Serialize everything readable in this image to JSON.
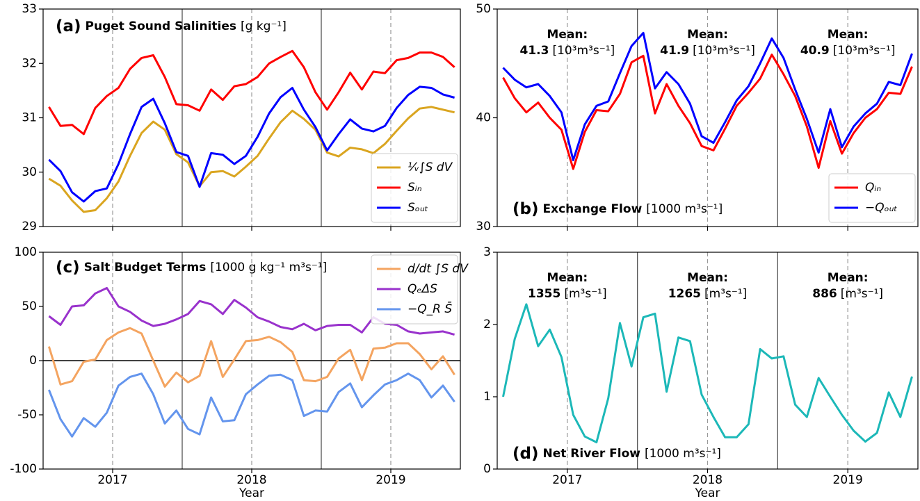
{
  "chart_data": [
    {
      "type": "line",
      "panel_label": "(a)",
      "title": "Puget Sound Salinities",
      "units": "[g kg⁻¹]",
      "x": [
        2016.542,
        2016.625,
        2016.708,
        2016.792,
        2016.875,
        2016.958,
        2017.042,
        2017.125,
        2017.208,
        2017.292,
        2017.375,
        2017.458,
        2017.542,
        2017.625,
        2017.708,
        2017.792,
        2017.875,
        2017.958,
        2018.042,
        2018.125,
        2018.208,
        2018.292,
        2018.375,
        2018.458,
        2018.542,
        2018.625,
        2018.708,
        2018.792,
        2018.875,
        2018.958,
        2019.042,
        2019.125,
        2019.208,
        2019.292,
        2019.375,
        2019.458
      ],
      "xlim": [
        2016.5,
        2019.5
      ],
      "xticks": [
        2017,
        2018,
        2019
      ],
      "show_xtick_labels": false,
      "grid_x": true,
      "vlines": [
        2017.5,
        2018.5
      ],
      "ylim": [
        29,
        33
      ],
      "yticks": [
        29,
        30,
        31,
        32,
        33
      ],
      "legend": "lower right",
      "series": [
        {
          "name": "¹⁄ᵥ∫S dV",
          "color": "#daa520",
          "values": [
            29.88,
            29.75,
            29.48,
            29.27,
            29.3,
            29.52,
            29.83,
            30.3,
            30.72,
            30.93,
            30.78,
            30.33,
            30.18,
            29.74,
            30.0,
            30.02,
            29.92,
            30.1,
            30.3,
            30.62,
            30.92,
            31.13,
            30.98,
            30.78,
            30.36,
            30.29,
            30.45,
            30.42,
            30.35,
            30.52,
            30.76,
            30.99,
            31.17,
            31.2,
            31.15,
            31.1
          ]
        },
        {
          "name": "Sᵢₙ",
          "color": "#ff0000",
          "values": [
            31.2,
            30.85,
            30.87,
            30.7,
            31.18,
            31.4,
            31.55,
            31.9,
            32.1,
            32.15,
            31.75,
            31.25,
            31.23,
            31.13,
            31.52,
            31.33,
            31.58,
            31.62,
            31.75,
            32.0,
            32.12,
            32.23,
            31.93,
            31.47,
            31.15,
            31.47,
            31.83,
            31.52,
            31.85,
            31.82,
            32.06,
            32.1,
            32.2,
            32.2,
            32.12,
            31.93
          ]
        },
        {
          "name": "Sₒᵤₜ",
          "color": "#0000ff",
          "values": [
            30.23,
            30.02,
            29.63,
            29.46,
            29.65,
            29.7,
            30.15,
            30.7,
            31.2,
            31.35,
            30.9,
            30.37,
            30.3,
            29.73,
            30.35,
            30.32,
            30.15,
            30.3,
            30.65,
            31.08,
            31.38,
            31.55,
            31.15,
            30.83,
            30.4,
            30.7,
            30.97,
            30.8,
            30.75,
            30.85,
            31.18,
            31.42,
            31.57,
            31.55,
            31.43,
            31.37
          ]
        }
      ]
    },
    {
      "type": "line",
      "panel_label": "(b)",
      "title": "Exchange Flow",
      "units": "[1000 m³s⁻¹]",
      "x": [
        2016.542,
        2016.625,
        2016.708,
        2016.792,
        2016.875,
        2016.958,
        2017.042,
        2017.125,
        2017.208,
        2017.292,
        2017.375,
        2017.458,
        2017.542,
        2017.625,
        2017.708,
        2017.792,
        2017.875,
        2017.958,
        2018.042,
        2018.125,
        2018.208,
        2018.292,
        2018.375,
        2018.458,
        2018.542,
        2018.625,
        2018.708,
        2018.792,
        2018.875,
        2018.958,
        2019.042,
        2019.125,
        2019.208,
        2019.292,
        2019.375,
        2019.458
      ],
      "xlim": [
        2016.5,
        2019.5
      ],
      "xticks": [
        2017,
        2018,
        2019
      ],
      "show_xtick_labels": false,
      "grid_x": true,
      "vlines": [
        2017.5,
        2018.5
      ],
      "ylim": [
        30,
        50
      ],
      "yticks": [
        30,
        40,
        50
      ],
      "legend": "lower right",
      "annotation_color": "#800080",
      "annotations": [
        {
          "label": "Mean:",
          "value": 41.3,
          "unit": "[10³m³s⁻¹]"
        },
        {
          "label": "Mean:",
          "value": 41.9,
          "unit": "[10³m³s⁻¹]"
        },
        {
          "label": "Mean:",
          "value": 40.9,
          "unit": "[10³m³s⁻¹]"
        }
      ],
      "series": [
        {
          "name": "Qᵢₙ",
          "color": "#ff0000",
          "values": [
            43.7,
            41.8,
            40.5,
            41.4,
            40.0,
            38.9,
            35.3,
            38.7,
            40.7,
            40.6,
            42.2,
            45.1,
            45.7,
            40.4,
            43.1,
            41.1,
            39.5,
            37.4,
            37.0,
            39.0,
            41.1,
            42.3,
            43.6,
            45.8,
            44.0,
            42.0,
            39.2,
            35.4,
            39.7,
            36.7,
            38.6,
            40.0,
            40.8,
            42.3,
            42.2,
            44.7
          ]
        },
        {
          "name": "−Qₒᵤₜ",
          "color": "#0000ff",
          "values": [
            44.6,
            43.5,
            42.8,
            43.1,
            42.0,
            40.5,
            36.1,
            39.4,
            41.1,
            41.5,
            44.1,
            46.6,
            47.8,
            42.7,
            44.2,
            43.1,
            41.3,
            38.3,
            37.7,
            39.6,
            41.6,
            42.9,
            45.0,
            47.3,
            45.5,
            42.6,
            39.9,
            36.8,
            40.8,
            37.3,
            39.2,
            40.4,
            41.3,
            43.3,
            43.0,
            45.9
          ]
        }
      ]
    },
    {
      "type": "line",
      "panel_label": "(c)",
      "title": "Salt Budget Terms",
      "units": "[1000 g kg⁻¹ m³s⁻¹]",
      "xlabel": "Year",
      "x": [
        2016.542,
        2016.625,
        2016.708,
        2016.792,
        2016.875,
        2016.958,
        2017.042,
        2017.125,
        2017.208,
        2017.292,
        2017.375,
        2017.458,
        2017.542,
        2017.625,
        2017.708,
        2017.792,
        2017.875,
        2017.958,
        2018.042,
        2018.125,
        2018.208,
        2018.292,
        2018.375,
        2018.458,
        2018.542,
        2018.625,
        2018.708,
        2018.792,
        2018.875,
        2018.958,
        2019.042,
        2019.125,
        2019.208,
        2019.292,
        2019.375,
        2019.458
      ],
      "xlim": [
        2016.5,
        2019.5
      ],
      "xticks": [
        2017,
        2018,
        2019
      ],
      "show_xtick_labels": true,
      "grid_x": true,
      "vlines": [
        2017.5,
        2018.5
      ],
      "hlines": [
        0
      ],
      "ylim": [
        -100,
        100
      ],
      "yticks": [
        -100,
        -50,
        0,
        50,
        100
      ],
      "legend": "upper right",
      "series": [
        {
          "name": "d/dt ∫S dV",
          "color": "#f4a460",
          "values": [
            13,
            -22,
            -19,
            -1,
            1,
            19,
            26,
            30,
            25,
            0,
            -24,
            -11,
            -20,
            -14,
            18,
            -15,
            1,
            18,
            19,
            22,
            17,
            8,
            -18,
            -19,
            -15,
            2,
            10,
            -18,
            11,
            12,
            16,
            16,
            6,
            -8,
            4,
            -13
          ]
        },
        {
          "name": "QₑΔS",
          "color": "#9932cc",
          "values": [
            41,
            33,
            50,
            51,
            62,
            67,
            50,
            45,
            37,
            32,
            34,
            38,
            43,
            55,
            52,
            43,
            56,
            49,
            40,
            36,
            31,
            29,
            34,
            28,
            32,
            33,
            33,
            26,
            40,
            34,
            33,
            27,
            25,
            26,
            27,
            24
          ]
        },
        {
          "name": "−Q_R S̄",
          "color": "#6495ed",
          "values": [
            -27,
            -54,
            -70,
            -53,
            -61,
            -48,
            -23,
            -15,
            -12,
            -31,
            -58,
            -46,
            -63,
            -68,
            -34,
            -56,
            -55,
            -31,
            -22,
            -14,
            -13,
            -18,
            -51,
            -46,
            -47,
            -29,
            -21,
            -43,
            -32,
            -22,
            -18,
            -12,
            -18,
            -34,
            -23,
            -38
          ]
        }
      ]
    },
    {
      "type": "line",
      "panel_label": "(d)",
      "title": "Net River Flow",
      "units": "[1000 m³s⁻¹]",
      "xlabel": "Year",
      "x": [
        2016.542,
        2016.625,
        2016.708,
        2016.792,
        2016.875,
        2016.958,
        2017.042,
        2017.125,
        2017.208,
        2017.292,
        2017.375,
        2017.458,
        2017.542,
        2017.625,
        2017.708,
        2017.792,
        2017.875,
        2017.958,
        2018.042,
        2018.125,
        2018.208,
        2018.292,
        2018.375,
        2018.458,
        2018.542,
        2018.625,
        2018.708,
        2018.792,
        2018.875,
        2018.958,
        2019.042,
        2019.125,
        2019.208,
        2019.292,
        2019.375,
        2019.458
      ],
      "xlim": [
        2016.5,
        2019.5
      ],
      "xticks": [
        2017,
        2018,
        2019
      ],
      "show_xtick_labels": true,
      "grid_x": true,
      "vlines": [
        2017.5,
        2018.5
      ],
      "ylim": [
        0,
        3
      ],
      "yticks": [
        0,
        1,
        2,
        3
      ],
      "annotation_color": "#1cb8b8",
      "annotations": [
        {
          "label": "Mean:",
          "value": 1355,
          "unit": "[m³s⁻¹]"
        },
        {
          "label": "Mean:",
          "value": 1265,
          "unit": "[m³s⁻¹]"
        },
        {
          "label": "Mean:",
          "value": 886,
          "unit": "[m³s⁻¹]"
        }
      ],
      "series": [
        {
          "name": "Net River Flow",
          "color": "#1cb8b8",
          "values": [
            1.0,
            1.8,
            2.28,
            1.7,
            1.93,
            1.55,
            0.75,
            0.45,
            0.37,
            0.98,
            2.02,
            1.42,
            2.1,
            2.15,
            1.07,
            1.82,
            1.77,
            1.03,
            0.72,
            0.44,
            0.44,
            0.62,
            1.66,
            1.53,
            1.56,
            0.89,
            0.72,
            1.26,
            1.0,
            0.75,
            0.53,
            0.38,
            0.5,
            1.06,
            0.72,
            1.28
          ]
        }
      ]
    }
  ]
}
